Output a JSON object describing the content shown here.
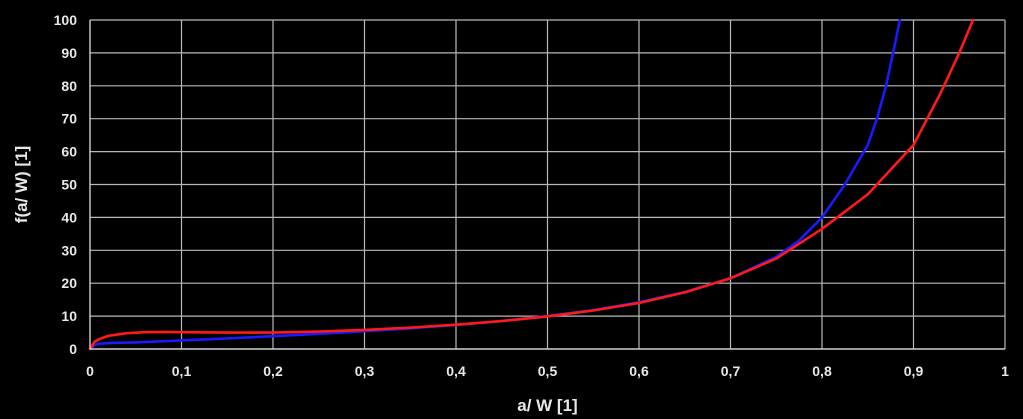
{
  "chart_data": {
    "type": "line",
    "title": "",
    "xlabel": "a/ W [1]",
    "ylabel": "f(a/ W) [1]",
    "xlim": [
      0,
      1
    ],
    "ylim": [
      0,
      100
    ],
    "x_ticks": [
      0,
      0.1,
      0.2,
      0.3,
      0.4,
      0.5,
      0.6,
      0.7,
      0.8,
      0.9,
      1
    ],
    "x_tick_labels": [
      "0",
      "0,1",
      "0,2",
      "0,3",
      "0,4",
      "0,5",
      "0,6",
      "0,7",
      "0,8",
      "0,9",
      "1"
    ],
    "y_ticks": [
      0,
      10,
      20,
      30,
      40,
      50,
      60,
      70,
      80,
      90,
      100
    ],
    "y_tick_labels": [
      "0",
      "10",
      "20",
      "30",
      "40",
      "50",
      "60",
      "70",
      "80",
      "90",
      "100"
    ],
    "grid": true,
    "legend": "none",
    "series": [
      {
        "color": "#1a1aff",
        "points": [
          [
            0,
            0
          ],
          [
            0.005,
            1.2
          ],
          [
            0.01,
            1.6
          ],
          [
            0.02,
            1.8
          ],
          [
            0.05,
            2.0
          ],
          [
            0.1,
            2.6
          ],
          [
            0.15,
            3.2
          ],
          [
            0.2,
            3.9
          ],
          [
            0.25,
            4.6
          ],
          [
            0.3,
            5.4
          ],
          [
            0.35,
            6.3
          ],
          [
            0.4,
            7.3
          ],
          [
            0.45,
            8.5
          ],
          [
            0.5,
            10.0
          ],
          [
            0.55,
            11.8
          ],
          [
            0.6,
            14.2
          ],
          [
            0.65,
            17.3
          ],
          [
            0.7,
            21.5
          ],
          [
            0.75,
            28.0
          ],
          [
            0.775,
            33.0
          ],
          [
            0.8,
            40.0
          ],
          [
            0.825,
            50.0
          ],
          [
            0.85,
            62.0
          ],
          [
            0.86,
            70.0
          ],
          [
            0.87,
            80.0
          ],
          [
            0.88,
            93.0
          ],
          [
            0.885,
            100.0
          ]
        ]
      },
      {
        "color": "#ff1a1a",
        "points": [
          [
            0,
            0
          ],
          [
            0.005,
            2.2
          ],
          [
            0.01,
            3.0
          ],
          [
            0.02,
            4.0
          ],
          [
            0.04,
            4.8
          ],
          [
            0.06,
            5.1
          ],
          [
            0.08,
            5.2
          ],
          [
            0.1,
            5.1
          ],
          [
            0.15,
            5.0
          ],
          [
            0.2,
            5.0
          ],
          [
            0.25,
            5.3
          ],
          [
            0.3,
            5.8
          ],
          [
            0.35,
            6.5
          ],
          [
            0.4,
            7.4
          ],
          [
            0.45,
            8.5
          ],
          [
            0.5,
            9.9
          ],
          [
            0.55,
            11.7
          ],
          [
            0.6,
            14.0
          ],
          [
            0.65,
            17.2
          ],
          [
            0.7,
            21.5
          ],
          [
            0.75,
            27.5
          ],
          [
            0.8,
            36.5
          ],
          [
            0.85,
            47.0
          ],
          [
            0.9,
            62.0
          ],
          [
            0.93,
            78.0
          ],
          [
            0.95,
            90.0
          ],
          [
            0.965,
            100.0
          ]
        ]
      }
    ]
  }
}
